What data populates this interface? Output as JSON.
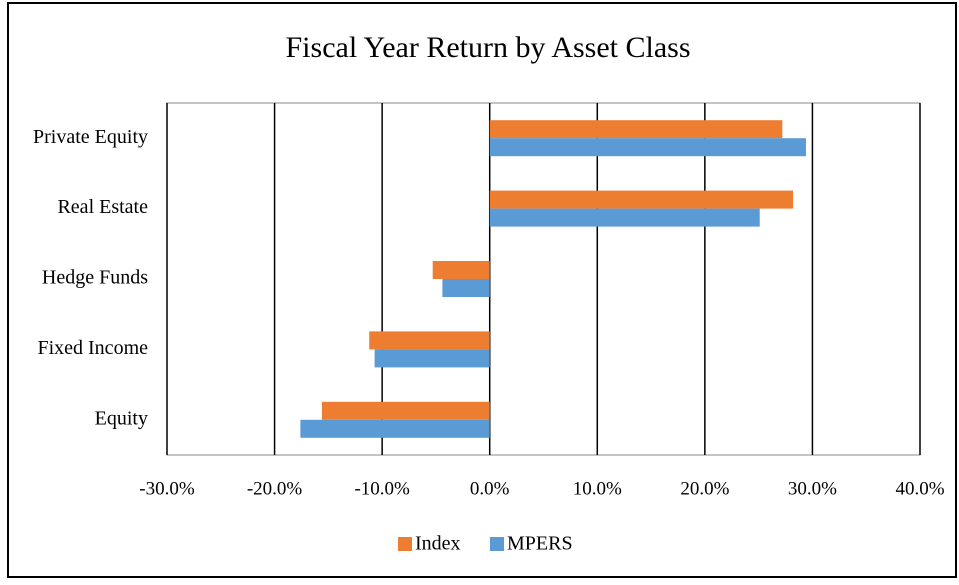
{
  "chart_data": {
    "type": "bar",
    "orientation": "horizontal",
    "title": "Fiscal Year Return by Asset Class",
    "categories": [
      "Private Equity",
      "Real Estate",
      "Hedge Funds",
      "Fixed Income",
      "Equity"
    ],
    "series": [
      {
        "name": "Index",
        "color": "#ed7d31",
        "values": [
          27.2,
          28.2,
          -5.3,
          -11.2,
          -15.6
        ]
      },
      {
        "name": "MPERS",
        "color": "#5b9bd5",
        "values": [
          29.4,
          25.1,
          -4.4,
          -10.7,
          -17.6
        ]
      }
    ],
    "xlim": [
      -30,
      40
    ],
    "xticks": [
      {
        "value": -30,
        "label": "-30.0%"
      },
      {
        "value": -20,
        "label": "-20.0%"
      },
      {
        "value": -10,
        "label": "-10.0%"
      },
      {
        "value": 0,
        "label": "0.0%"
      },
      {
        "value": 10,
        "label": "10.0%"
      },
      {
        "value": 20,
        "label": "20.0%"
      },
      {
        "value": 30,
        "label": "30.0%"
      },
      {
        "value": 40,
        "label": "40.0%"
      }
    ],
    "grid": true,
    "legend": "bottom"
  }
}
